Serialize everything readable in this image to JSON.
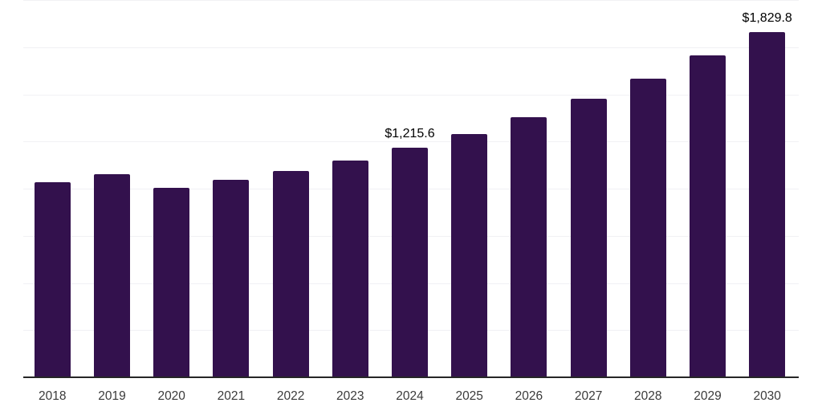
{
  "chart_data": {
    "type": "bar",
    "title": "",
    "categories": [
      "2018",
      "2019",
      "2020",
      "2021",
      "2022",
      "2023",
      "2024",
      "2025",
      "2026",
      "2027",
      "2028",
      "2029",
      "2030"
    ],
    "values": [
      1035,
      1078,
      1006,
      1048,
      1094,
      1147,
      1215.6,
      1290,
      1379,
      1477,
      1584,
      1706,
      1829.8
    ],
    "annotations": [
      {
        "category": "2024",
        "text": "$1,215.6"
      },
      {
        "category": "2030",
        "text": "$1,829.8"
      }
    ],
    "xlabel": "",
    "ylabel": "",
    "ylim": [
      0,
      2000
    ],
    "gridline_interval": 250,
    "grid": "horizontal",
    "legend": "none",
    "colors": {
      "bar": "#33114d",
      "axis": "#262626",
      "gridline": "#f1f1f4",
      "tick_label": "#3a3a3a",
      "value_label": "#000000",
      "background": "#ffffff"
    }
  }
}
